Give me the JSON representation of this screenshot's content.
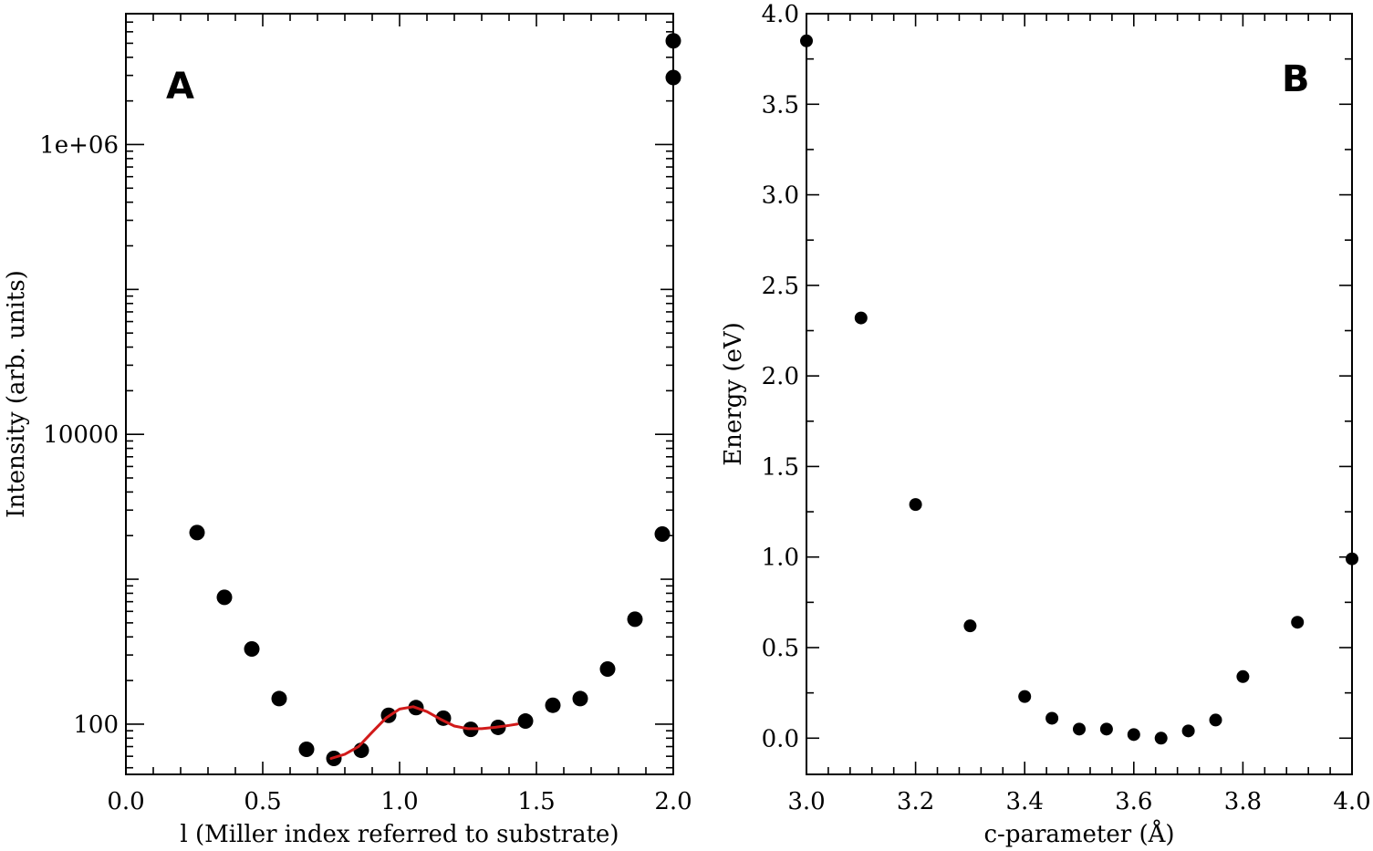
{
  "chart_data": [
    {
      "type": "scatter",
      "panel_label": "A",
      "xlabel": "l (Miller index referred to substrate)",
      "ylabel": "Intensity (arb. units)",
      "xlim": [
        0.0,
        2.0
      ],
      "ylim": [
        45,
        8000000
      ],
      "yscale": "log",
      "x_ticks": [
        0.0,
        0.5,
        1.0,
        1.5,
        2.0
      ],
      "x_tick_labels": [
        "0.0",
        "0.5",
        "1.0",
        "1.5",
        "2.0"
      ],
      "y_ticks": [
        100,
        10000,
        1000000
      ],
      "y_tick_labels": [
        "100",
        "10000",
        "1e+06"
      ],
      "grid": false,
      "series": [
        {
          "kind": "points",
          "color": "#000000",
          "x": [
            0.26,
            0.36,
            0.46,
            0.56,
            0.66,
            0.76,
            0.86,
            0.96,
            1.06,
            1.16,
            1.26,
            1.36,
            1.46,
            1.56,
            1.66,
            1.76,
            1.86,
            1.96,
            2.0,
            2.0
          ],
          "y": [
            2100,
            750,
            330,
            150,
            67,
            58,
            66,
            115,
            130,
            110,
            92,
            95,
            105,
            135,
            150,
            240,
            530,
            2050,
            2900000,
            5200000
          ]
        },
        {
          "kind": "line",
          "color": "#d11a1a",
          "x": [
            0.75,
            0.8,
            0.85,
            0.9,
            0.95,
            1.0,
            1.05,
            1.1,
            1.15,
            1.2,
            1.25,
            1.3,
            1.35,
            1.4,
            1.43
          ],
          "y": [
            58,
            62,
            70,
            88,
            110,
            127,
            132,
            122,
            108,
            97,
            93,
            93,
            95,
            98,
            100
          ]
        }
      ]
    },
    {
      "type": "scatter",
      "panel_label": "B",
      "xlabel": "c-parameter (Å)",
      "ylabel": "Energy (eV)",
      "xlim": [
        3.0,
        4.0
      ],
      "ylim": [
        -0.2,
        4.0
      ],
      "x_ticks": [
        3.0,
        3.2,
        3.4,
        3.6,
        3.8,
        4.0
      ],
      "x_tick_labels": [
        "3.0",
        "3.2",
        "3.4",
        "3.6",
        "3.8",
        "4.0"
      ],
      "y_ticks": [
        0.0,
        0.5,
        1.0,
        1.5,
        2.0,
        2.5,
        3.0,
        3.5,
        4.0
      ],
      "y_tick_labels": [
        "0.0",
        "0.5",
        "1.0",
        "1.5",
        "2.0",
        "2.5",
        "3.0",
        "3.5",
        "4.0"
      ],
      "grid": false,
      "series": [
        {
          "kind": "points",
          "color": "#000000",
          "x": [
            3.0,
            3.1,
            3.2,
            3.3,
            3.4,
            3.45,
            3.5,
            3.55,
            3.6,
            3.65,
            3.7,
            3.75,
            3.8,
            3.9,
            4.0
          ],
          "y": [
            3.85,
            2.32,
            1.29,
            0.62,
            0.23,
            0.11,
            0.05,
            0.05,
            0.02,
            0.0,
            0.04,
            0.1,
            0.34,
            0.64,
            0.99
          ]
        }
      ]
    }
  ]
}
